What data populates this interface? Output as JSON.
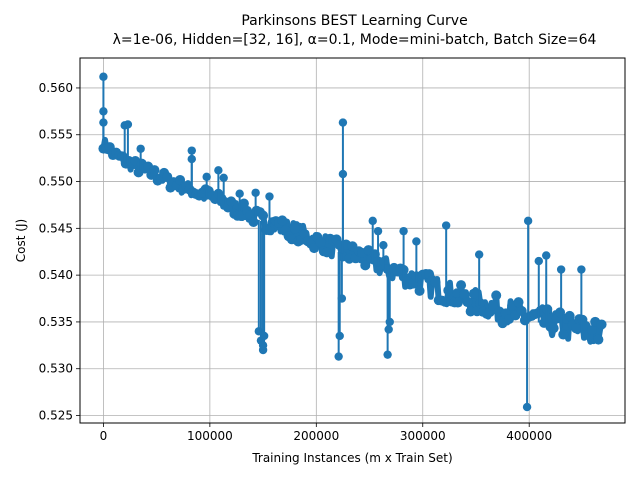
{
  "chart_data": {
    "type": "line",
    "title": "Parkinsons BEST Learning Curve",
    "subtitle": "λ=1e-06,  Hidden=[32, 16], α=0.1, Mode=mini-batch, Batch Size=64",
    "xlabel": "Training Instances (m x Train Set)",
    "ylabel": "Cost (J)",
    "xlim": [
      -22000,
      490000
    ],
    "ylim": [
      0.5242,
      0.5632
    ],
    "x_ticks": [
      0,
      100000,
      200000,
      300000,
      400000
    ],
    "x_tick_labels": [
      "0",
      "100000",
      "200000",
      "300000",
      "400000"
    ],
    "y_ticks": [
      0.525,
      0.53,
      0.535,
      0.54,
      0.545,
      0.55,
      0.555,
      0.56
    ],
    "y_tick_labels": [
      "0.525",
      "0.530",
      "0.535",
      "0.540",
      "0.545",
      "0.550",
      "0.555",
      "0.560"
    ],
    "grid": true,
    "marker": "circle",
    "series_color": "#1f77b4",
    "trend": [
      [
        0,
        0.554
      ],
      [
        10000,
        0.5528
      ],
      [
        20000,
        0.552
      ],
      [
        40000,
        0.551
      ],
      [
        60000,
        0.55
      ],
      [
        80000,
        0.549
      ],
      [
        100000,
        0.5482
      ],
      [
        120000,
        0.5472
      ],
      [
        140000,
        0.5462
      ],
      [
        160000,
        0.5452
      ],
      [
        180000,
        0.5445
      ],
      [
        200000,
        0.5435
      ],
      [
        220000,
        0.5425
      ],
      [
        240000,
        0.5418
      ],
      [
        260000,
        0.5408
      ],
      [
        280000,
        0.5398
      ],
      [
        300000,
        0.539
      ],
      [
        320000,
        0.538
      ],
      [
        340000,
        0.5372
      ],
      [
        360000,
        0.5365
      ],
      [
        380000,
        0.5358
      ],
      [
        400000,
        0.5352
      ],
      [
        420000,
        0.5346
      ],
      [
        440000,
        0.534
      ],
      [
        460000,
        0.5335
      ],
      [
        468000,
        0.5332
      ]
    ],
    "spikes": [
      [
        0,
        0.5612
      ],
      [
        0,
        0.5575
      ],
      [
        0,
        0.5563
      ],
      [
        20000,
        0.556
      ],
      [
        23000,
        0.5561
      ],
      [
        35000,
        0.5535
      ],
      [
        83000,
        0.5533
      ],
      [
        83000,
        0.5524
      ],
      [
        97000,
        0.5505
      ],
      [
        108000,
        0.5512
      ],
      [
        113000,
        0.5504
      ],
      [
        128000,
        0.5487
      ],
      [
        143000,
        0.5488
      ],
      [
        156000,
        0.5484
      ],
      [
        146000,
        0.534
      ],
      [
        148000,
        0.533
      ],
      [
        150000,
        0.532
      ],
      [
        150000,
        0.5325
      ],
      [
        151000,
        0.5335
      ],
      [
        221000,
        0.5313
      ],
      [
        222000,
        0.5335
      ],
      [
        224000,
        0.5375
      ],
      [
        225000,
        0.5508
      ],
      [
        225000,
        0.5563
      ],
      [
        253000,
        0.5458
      ],
      [
        258000,
        0.5447
      ],
      [
        263000,
        0.5432
      ],
      [
        267000,
        0.5315
      ],
      [
        268000,
        0.5342
      ],
      [
        269000,
        0.535
      ],
      [
        282000,
        0.5447
      ],
      [
        294000,
        0.5436
      ],
      [
        322000,
        0.5453
      ],
      [
        353000,
        0.5422
      ],
      [
        398000,
        0.5259
      ],
      [
        399000,
        0.5458
      ],
      [
        409000,
        0.5415
      ],
      [
        416000,
        0.5421
      ],
      [
        430000,
        0.5406
      ],
      [
        449000,
        0.5406
      ]
    ]
  }
}
